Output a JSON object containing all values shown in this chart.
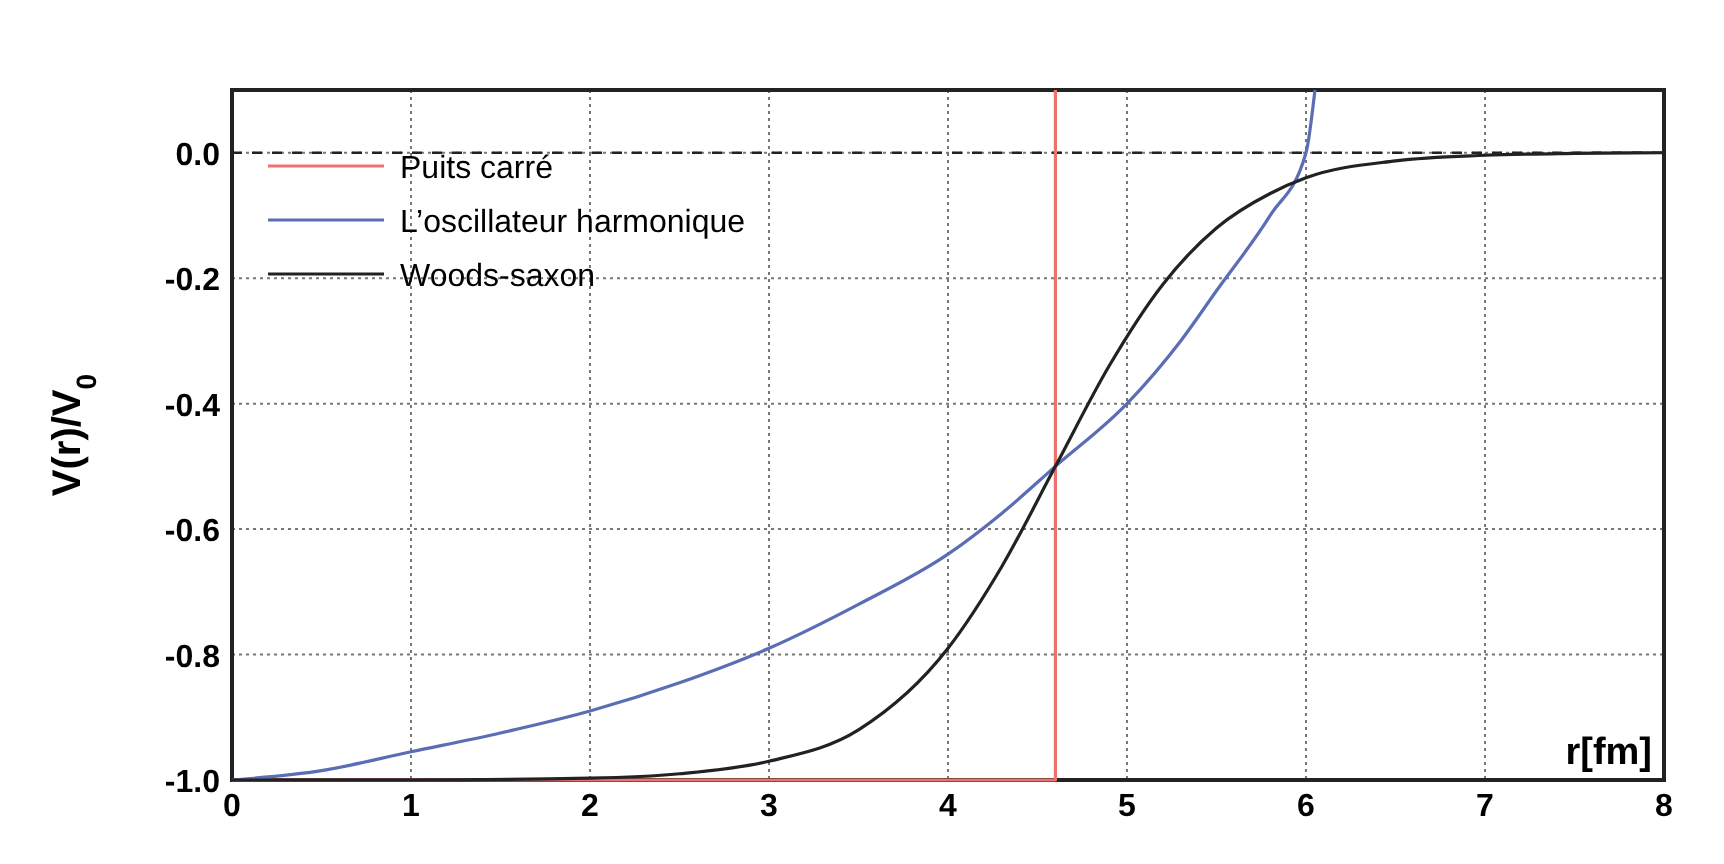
{
  "chart_data": {
    "type": "line",
    "xlabel": "r[fm]",
    "ylabel": "V(r)/V$_{0}$",
    "xlim": [
      0,
      8
    ],
    "ylim": [
      -1,
      0.1
    ],
    "xticks": [
      0,
      1,
      2,
      3,
      4,
      5,
      6,
      7,
      8
    ],
    "yticks": [
      {
        "value": -1,
        "label": "-1.0"
      },
      {
        "value": -0.8,
        "label": "-0.8"
      },
      {
        "value": -0.6,
        "label": "-0.6"
      },
      {
        "value": -0.4,
        "label": "-0.4"
      },
      {
        "value": -0.2,
        "label": "-0.2"
      },
      {
        "value": 0,
        "label": "0.0"
      }
    ],
    "grid": true,
    "legend": "top left",
    "line_style": "solid",
    "ref_lines": [
      {
        "axis": "y",
        "value": 0,
        "color": "#222222",
        "line_style": "dashed"
      }
    ],
    "series": [
      {
        "name": "Puits carré",
        "color": "#f07070",
        "x": [
          0,
          4.6,
          4.6
        ],
        "values": [
          -1,
          -1,
          0.1
        ]
      },
      {
        "name": "L’oscillateur harmonique",
        "color": "#5a6db5",
        "x": [
          0,
          0.5,
          1,
          1.5,
          2,
          2.5,
          3,
          3.5,
          4,
          4.3,
          4.6,
          5,
          5.3,
          5.5,
          5.8,
          6,
          6.05
        ],
        "values": [
          -1,
          -0.985,
          -0.955,
          -0.925,
          -0.89,
          -0.845,
          -0.79,
          -0.72,
          -0.64,
          -0.575,
          -0.5,
          -0.4,
          -0.3,
          -0.22,
          -0.1,
          0,
          0.1
        ]
      },
      {
        "name": "Woods-saxon",
        "color": "#222222",
        "x": [
          0,
          1,
          2,
          2.5,
          3,
          3.5,
          4,
          4.3,
          4.6,
          4.9,
          5.2,
          5.5,
          5.8,
          6,
          6.5,
          7,
          7.5,
          8
        ],
        "values": [
          -1,
          -1,
          -0.997,
          -0.99,
          -0.97,
          -0.92,
          -0.79,
          -0.66,
          -0.5,
          -0.34,
          -0.21,
          -0.12,
          -0.065,
          -0.04,
          -0.013,
          -0.004,
          -0.001,
          0
        ]
      }
    ]
  }
}
